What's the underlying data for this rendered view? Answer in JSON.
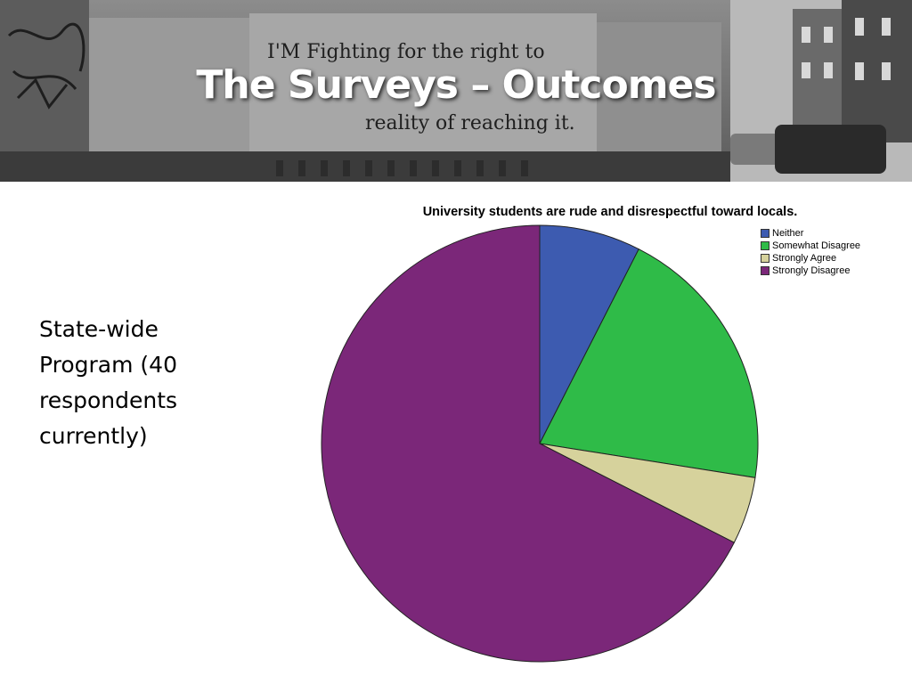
{
  "slide": {
    "title": "The Surveys – Outcomes",
    "side_text": [
      "State-wide",
      "Program (40",
      "respondents",
      "currently)"
    ]
  },
  "banner": {
    "graffiti_lines": [
      "I'M Fighting for the right to",
      "reality of reaching it."
    ]
  },
  "chart_data": {
    "type": "pie",
    "title": "University students are rude and disrespectful toward locals.",
    "legend_position": "top-right",
    "slices": [
      {
        "label": "Neither",
        "value": 7.5,
        "color": "#3d5bb0"
      },
      {
        "label": "Somewhat Disagree",
        "value": 20.0,
        "color": "#2fbb48"
      },
      {
        "label": "Strongly Agree",
        "value": 5.0,
        "color": "#d6d29c"
      },
      {
        "label": "Strongly Disagree",
        "value": 67.5,
        "color": "#7b2779"
      }
    ]
  }
}
